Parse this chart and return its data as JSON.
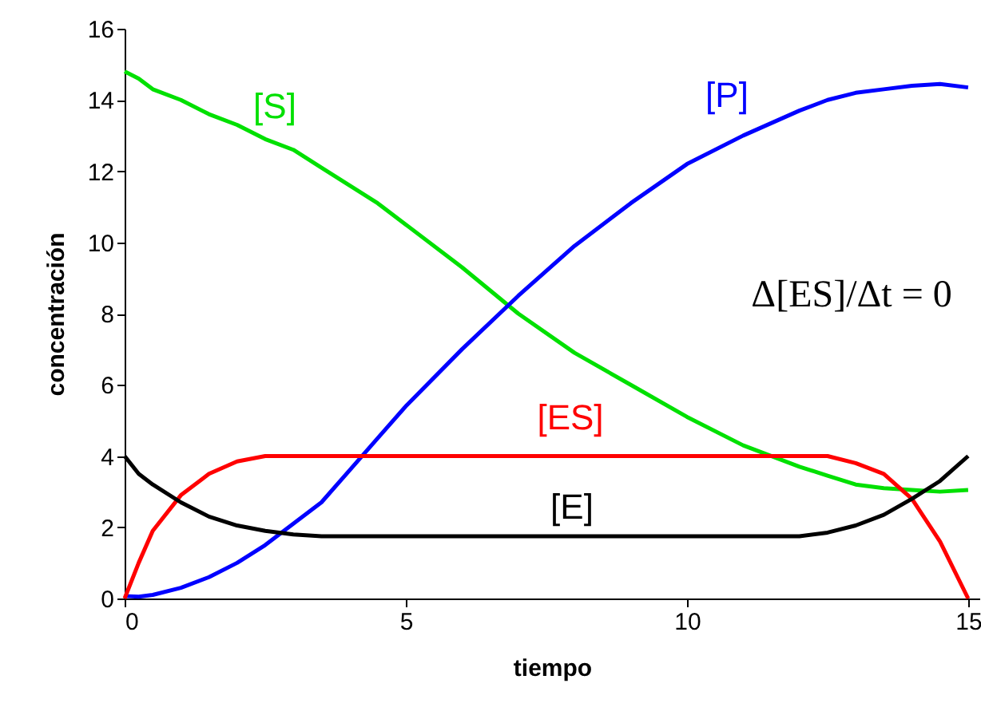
{
  "chart_data": {
    "type": "line",
    "xlabel": "tiempo",
    "ylabel": "concentración",
    "annotations": [
      "Δ[ES]/Δt = 0"
    ],
    "x": [
      0,
      0.25,
      0.5,
      1,
      1.5,
      2,
      2.5,
      3,
      3.5,
      4,
      4.5,
      5,
      6,
      7,
      8,
      9,
      10,
      11,
      12,
      12.5,
      13,
      13.5,
      14,
      14.5,
      15
    ],
    "series": [
      {
        "name": "[S]",
        "color": "#00e000",
        "values": [
          14.8,
          14.6,
          14.3,
          14.0,
          13.6,
          13.3,
          12.9,
          12.6,
          12.1,
          11.6,
          11.1,
          10.5,
          9.3,
          8.0,
          6.9,
          6.0,
          5.1,
          4.3,
          3.7,
          3.45,
          3.2,
          3.1,
          3.05,
          3.0,
          3.05
        ]
      },
      {
        "name": "[P]",
        "color": "#0000ff",
        "values": [
          0.07,
          0.05,
          0.1,
          0.3,
          0.6,
          1.0,
          1.5,
          2.1,
          2.7,
          3.6,
          4.5,
          5.4,
          7.0,
          8.5,
          9.9,
          11.1,
          12.2,
          13.0,
          13.7,
          14.0,
          14.2,
          14.3,
          14.4,
          14.45,
          14.35
        ]
      },
      {
        "name": "[ES]",
        "color": "#ff0000",
        "values": [
          0,
          1.0,
          1.9,
          2.9,
          3.5,
          3.85,
          4.0,
          4.0,
          4.0,
          4.0,
          4.0,
          4.0,
          4.0,
          4.0,
          4.0,
          4.0,
          4.0,
          4.0,
          4.0,
          4.0,
          3.8,
          3.5,
          2.8,
          1.6,
          0
        ]
      },
      {
        "name": "[E]",
        "color": "#000000",
        "values": [
          4.0,
          3.5,
          3.2,
          2.7,
          2.3,
          2.05,
          1.9,
          1.8,
          1.75,
          1.75,
          1.75,
          1.75,
          1.75,
          1.75,
          1.75,
          1.75,
          1.75,
          1.75,
          1.75,
          1.85,
          2.05,
          2.35,
          2.8,
          3.3,
          4.0
        ]
      }
    ],
    "xlim": [
      0,
      15.2
    ],
    "xticks": [
      0,
      5,
      10,
      15
    ],
    "ylim": [
      0,
      16
    ],
    "yticks": [
      0,
      2,
      4,
      6,
      8,
      10,
      12,
      14,
      16
    ],
    "grid": false,
    "marker": "none",
    "line_style": "solid"
  }
}
